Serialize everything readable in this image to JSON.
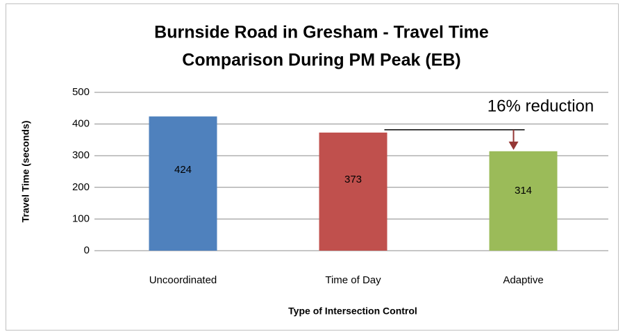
{
  "chart_data": {
    "type": "bar",
    "title": [
      "Burnside Road in Gresham - Travel Time",
      "Comparison During PM Peak (EB)"
    ],
    "x_label": "Type of Intersection Control",
    "y_label": "Travel Time (seconds)",
    "categories": [
      "Uncoordinated",
      "Time of Day",
      "Adaptive"
    ],
    "values": [
      424,
      373,
      314
    ],
    "colors": [
      "#4f81bd",
      "#c0504d",
      "#9bbb59"
    ],
    "ylim": [
      0,
      500
    ],
    "yticks": [
      0,
      100,
      200,
      300,
      400,
      500
    ],
    "grid": true,
    "annotation": "16% reduction"
  }
}
